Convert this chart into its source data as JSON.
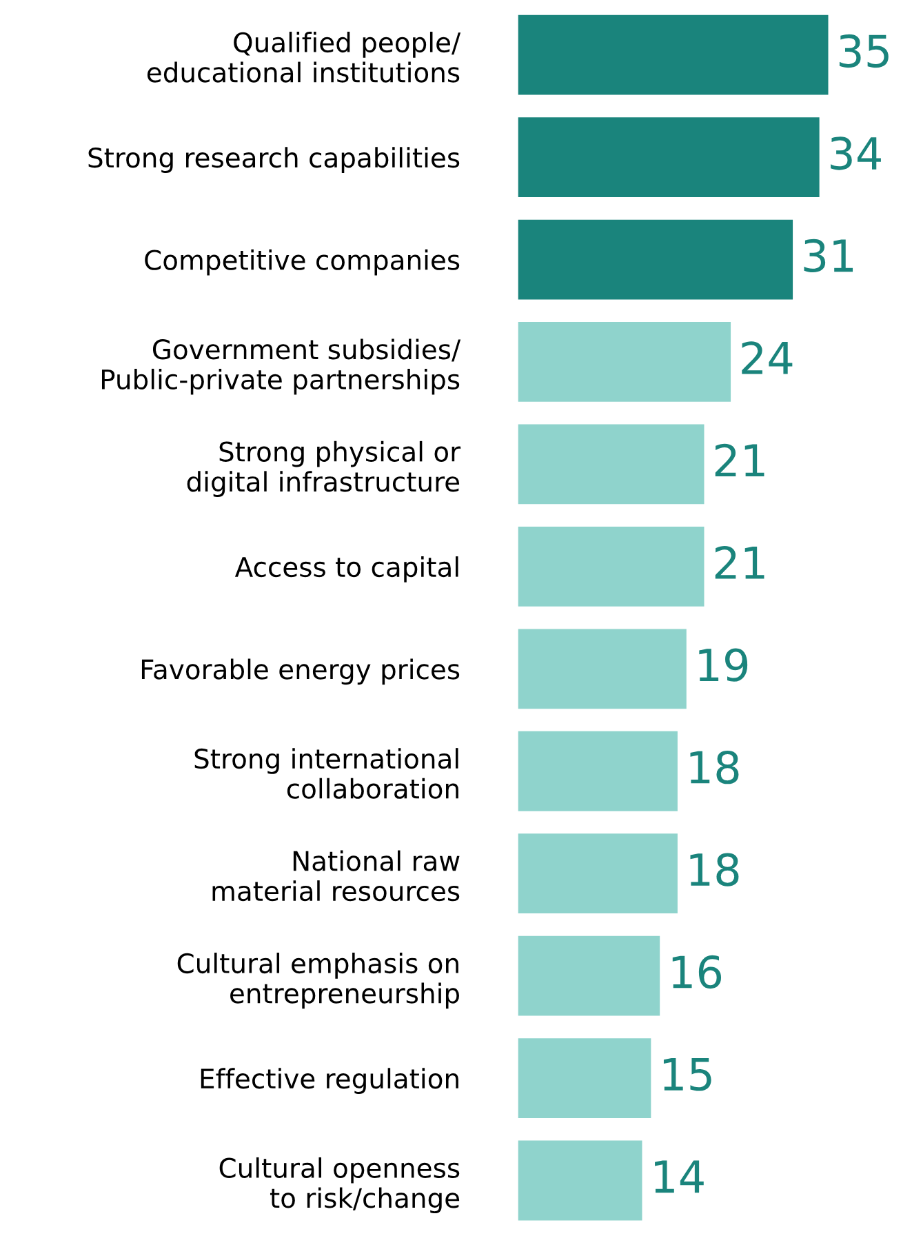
{
  "chart_data": {
    "type": "bar",
    "orientation": "horizontal",
    "categories": [
      "Qualified people/\neducational institutions",
      "Strong research capabilities",
      "Competitive companies",
      "Government subsidies/\nPublic-private partnerships",
      "Strong physical or\ndigital infrastructure",
      "Access to capital",
      "Favorable energy prices",
      "Strong international\ncollaboration",
      "National raw\nmaterial resources",
      "Cultural emphasis on\nentrepreneurship",
      "Effective regulation",
      "Cultural openness\nto risk/change"
    ],
    "values": [
      35,
      34,
      31,
      24,
      21,
      21,
      19,
      18,
      18,
      16,
      15,
      14
    ],
    "colors": [
      "#1a847c",
      "#1a847c",
      "#1a847c",
      "#8fd3cc",
      "#8fd3cc",
      "#8fd3cc",
      "#8fd3cc",
      "#8fd3cc",
      "#8fd3cc",
      "#8fd3cc",
      "#8fd3cc",
      "#8fd3cc"
    ],
    "data_labels": true,
    "tick_labels": "y"
  }
}
